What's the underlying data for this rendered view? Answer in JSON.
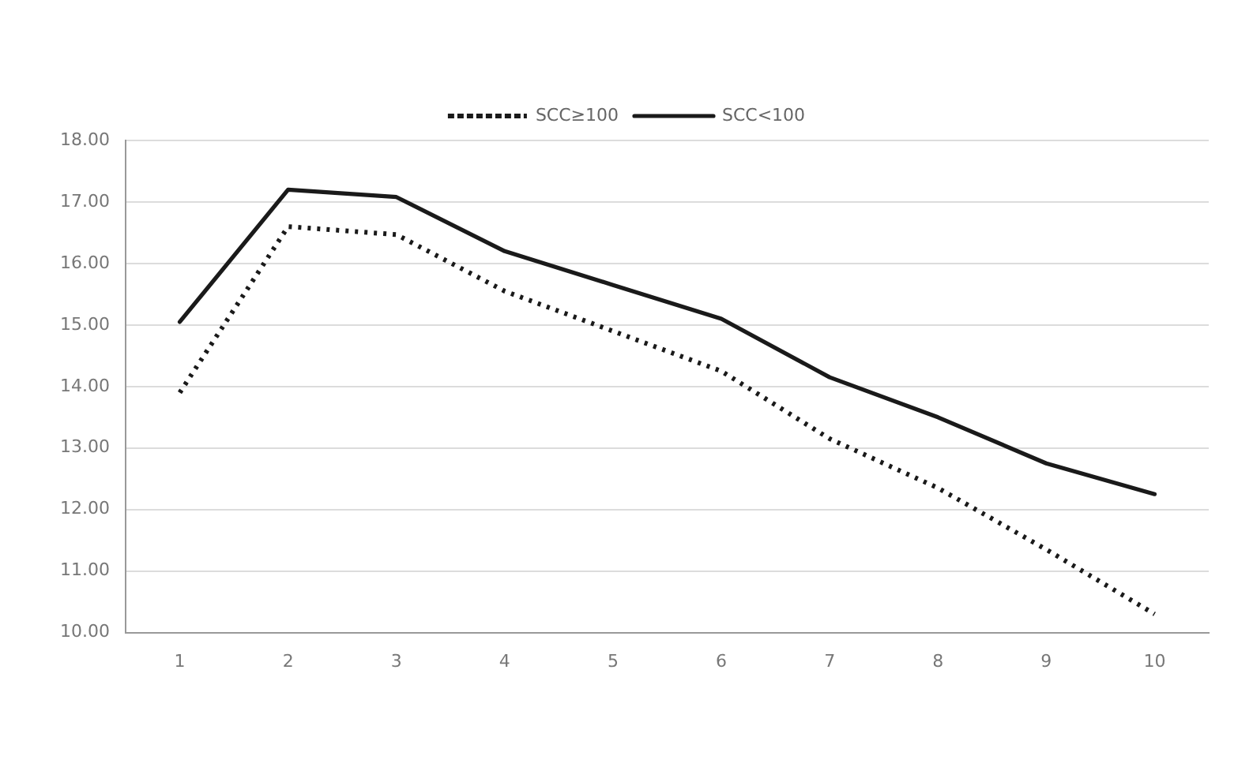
{
  "chart_data": {
    "type": "line",
    "categories": [
      "1",
      "2",
      "3",
      "4",
      "5",
      "6",
      "7",
      "8",
      "9",
      "10"
    ],
    "series": [
      {
        "name": "SCC≥100",
        "color": "#1a1a1a",
        "line_style": "dotted",
        "values": [
          13.9,
          16.6,
          16.47,
          15.55,
          14.9,
          14.25,
          13.15,
          12.35,
          11.35,
          10.3
        ]
      },
      {
        "name": "SCC<100",
        "color": "#1a1a1a",
        "line_style": "solid",
        "values": [
          15.05,
          17.2,
          17.08,
          16.2,
          15.65,
          15.1,
          14.15,
          13.5,
          12.75,
          12.25
        ]
      }
    ],
    "ylim": [
      10,
      18
    ],
    "yticks": [
      {
        "value": 10,
        "label": "10.00"
      },
      {
        "value": 11,
        "label": "11.00"
      },
      {
        "value": 12,
        "label": "12.00"
      },
      {
        "value": 13,
        "label": "13.00"
      },
      {
        "value": 14,
        "label": "14.00"
      },
      {
        "value": 15,
        "label": "15.00"
      },
      {
        "value": 16,
        "label": "16.00"
      },
      {
        "value": 17,
        "label": "17.00"
      },
      {
        "value": 18,
        "label": "18.00"
      }
    ],
    "grid": "y",
    "legend": "top",
    "marker": "none"
  }
}
